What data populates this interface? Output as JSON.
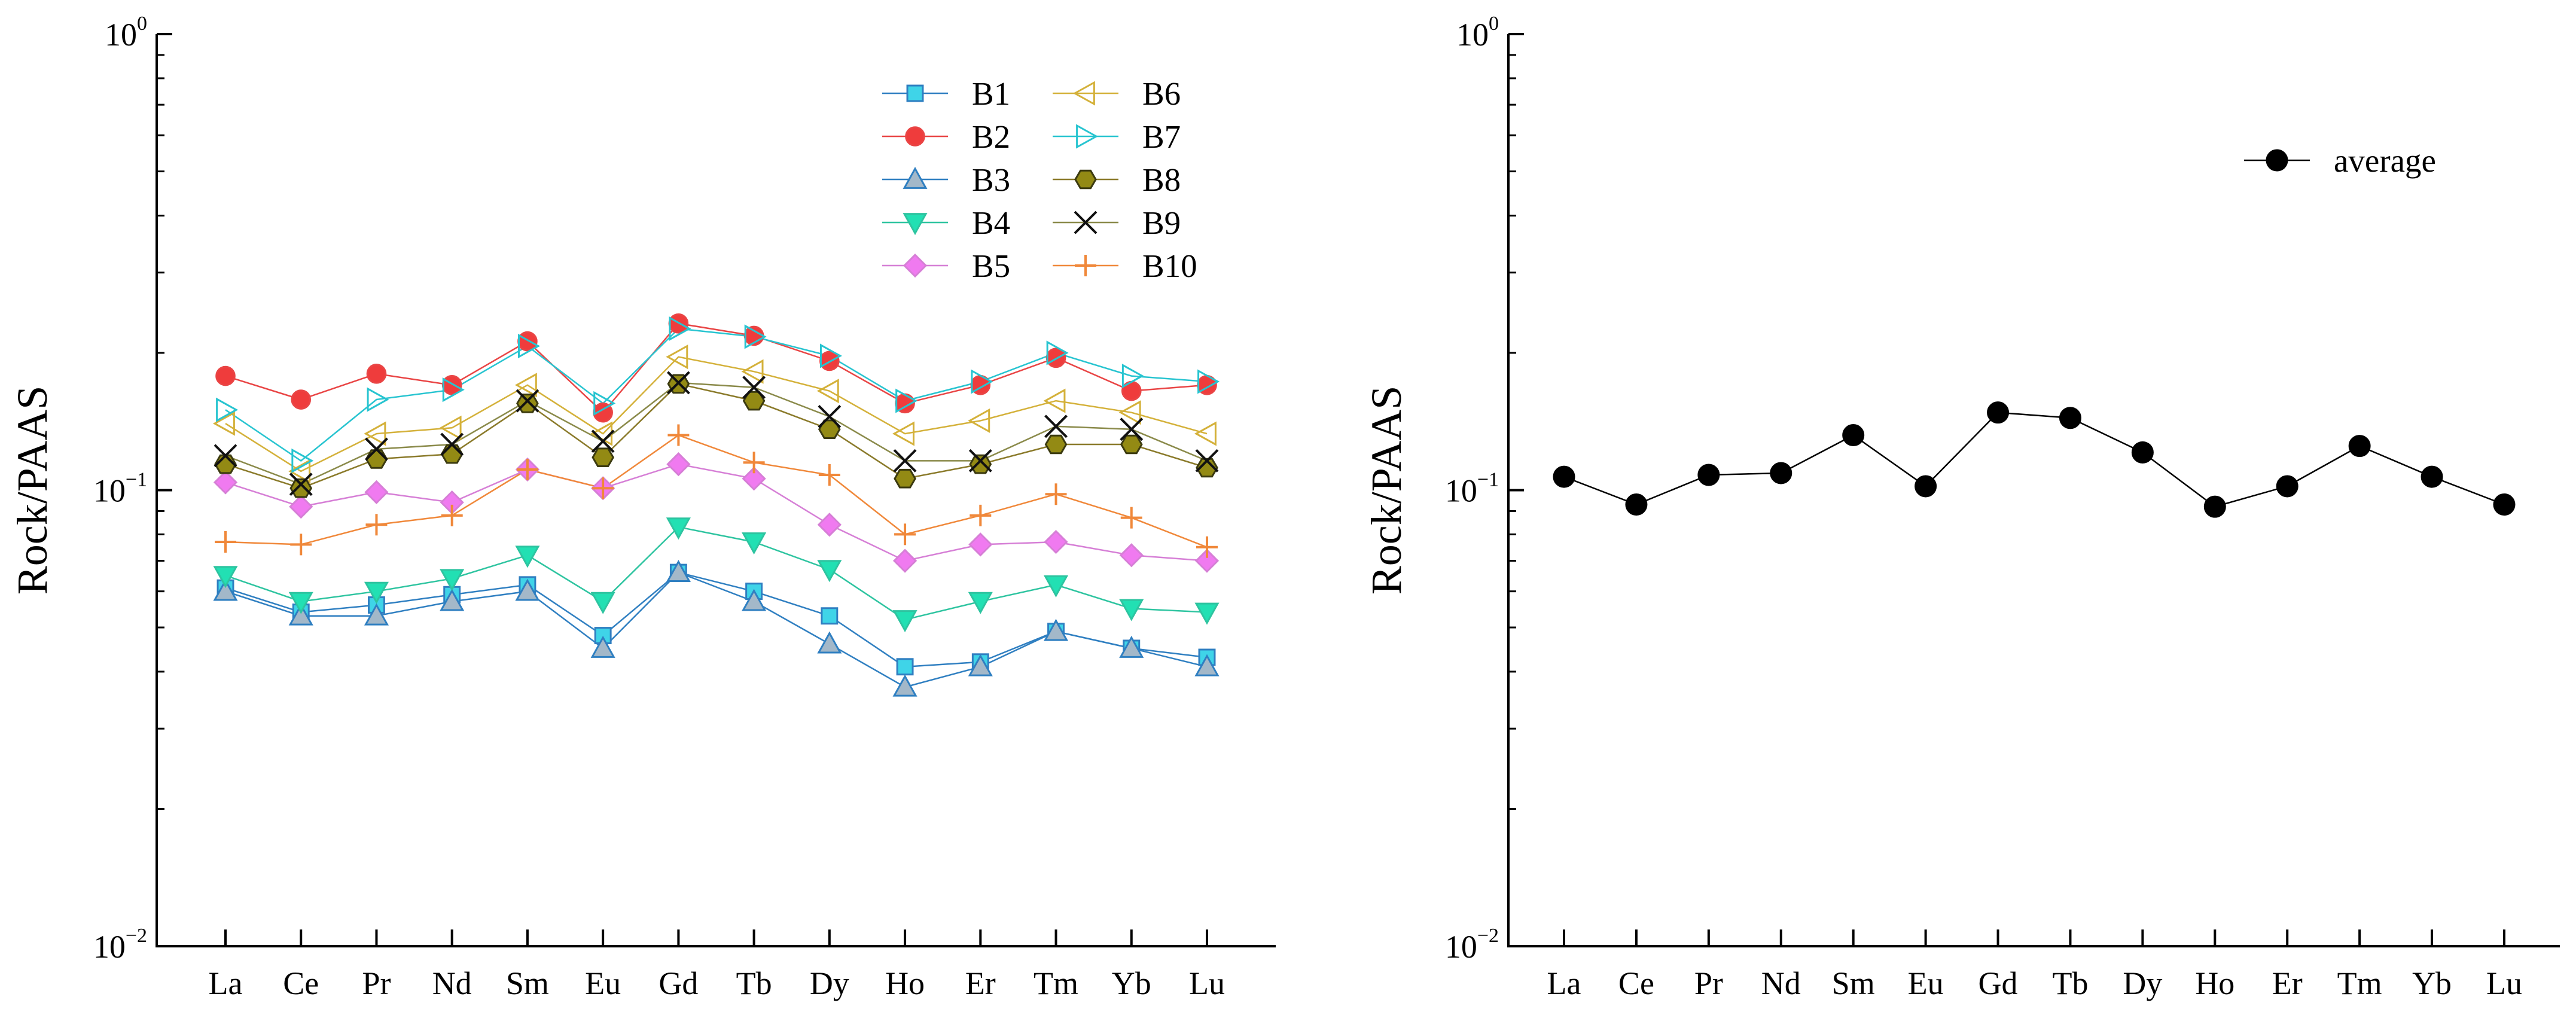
{
  "chart_data": [
    {
      "type": "line",
      "scale": "log",
      "ylabel": "Rock/PAAS",
      "ylim": [
        0.01,
        1
      ],
      "ytick_labels": [
        {
          "base": "10",
          "exp": "0",
          "value": 1
        },
        {
          "base": "10",
          "exp": "−1",
          "value": 0.1
        },
        {
          "base": "10",
          "exp": "−2",
          "value": 0.01
        }
      ],
      "categories": [
        "La",
        "Ce",
        "Pr",
        "Nd",
        "Sm",
        "Eu",
        "Gd",
        "Tb",
        "Dy",
        "Ho",
        "Er",
        "Tm",
        "Yb",
        "Lu"
      ],
      "legend_position": "top-right",
      "legend_columns": 2,
      "series": [
        {
          "name": "B1",
          "color": "#2f7fc1",
          "fill": "#3fd4e8",
          "marker": "square",
          "values": [
            0.061,
            0.054,
            0.056,
            0.059,
            0.062,
            0.048,
            0.066,
            0.06,
            0.053,
            0.041,
            0.042,
            0.049,
            0.045,
            0.043
          ]
        },
        {
          "name": "B2",
          "color": "#e94545",
          "fill": "#ef3c3c",
          "marker": "circle",
          "values": [
            0.178,
            0.158,
            0.18,
            0.17,
            0.212,
            0.148,
            0.232,
            0.218,
            0.192,
            0.155,
            0.17,
            0.195,
            0.165,
            0.17
          ]
        },
        {
          "name": "B3",
          "color": "#2f7fc1",
          "fill": "#a3b8c9",
          "marker": "triangle-up",
          "values": [
            0.06,
            0.053,
            0.053,
            0.057,
            0.06,
            0.045,
            0.066,
            0.057,
            0.046,
            0.037,
            0.041,
            0.049,
            0.045,
            0.041
          ]
        },
        {
          "name": "B4",
          "color": "#2ec4a0",
          "fill": "#22e0b3",
          "marker": "triangle-down",
          "values": [
            0.065,
            0.057,
            0.06,
            0.064,
            0.072,
            0.057,
            0.083,
            0.077,
            0.067,
            0.052,
            0.057,
            0.062,
            0.055,
            0.054
          ]
        },
        {
          "name": "B5",
          "color": "#d67fd6",
          "fill": "#f07af0",
          "marker": "diamond",
          "values": [
            0.104,
            0.092,
            0.099,
            0.094,
            0.111,
            0.101,
            0.114,
            0.106,
            0.084,
            0.07,
            0.076,
            0.077,
            0.072,
            0.07
          ]
        },
        {
          "name": "B6",
          "color": "#d4b13a",
          "fill": "none",
          "marker": "triangle-left",
          "values": [
            0.14,
            0.11,
            0.133,
            0.137,
            0.17,
            0.133,
            0.196,
            0.182,
            0.165,
            0.133,
            0.142,
            0.157,
            0.148,
            0.133
          ]
        },
        {
          "name": "B7",
          "color": "#27c4d0",
          "fill": "none",
          "marker": "triangle-right",
          "values": [
            0.15,
            0.116,
            0.158,
            0.166,
            0.207,
            0.155,
            0.226,
            0.217,
            0.197,
            0.157,
            0.173,
            0.2,
            0.178,
            0.173
          ]
        },
        {
          "name": "B8",
          "color": "#8a7a2a",
          "fill": "#938a14",
          "marker": "hexagon",
          "values": [
            0.114,
            0.101,
            0.117,
            0.12,
            0.155,
            0.118,
            0.171,
            0.157,
            0.136,
            0.106,
            0.114,
            0.126,
            0.126,
            0.112
          ]
        },
        {
          "name": "B9",
          "color": "#8a8a4a",
          "fill": "none",
          "marker": "x",
          "values": [
            0.119,
            0.103,
            0.123,
            0.126,
            0.157,
            0.128,
            0.172,
            0.168,
            0.145,
            0.116,
            0.116,
            0.138,
            0.136,
            0.116
          ]
        },
        {
          "name": "B10",
          "color": "#f0883a",
          "fill": "none",
          "marker": "plus",
          "values": [
            0.077,
            0.076,
            0.084,
            0.088,
            0.111,
            0.101,
            0.132,
            0.115,
            0.108,
            0.08,
            0.088,
            0.098,
            0.087,
            0.075
          ]
        }
      ]
    },
    {
      "type": "line",
      "scale": "log",
      "ylabel": "Rock/PAAS",
      "ylim": [
        0.01,
        1
      ],
      "ytick_labels": [
        {
          "base": "10",
          "exp": "0",
          "value": 1
        },
        {
          "base": "10",
          "exp": "−1",
          "value": 0.1
        },
        {
          "base": "10",
          "exp": "−2",
          "value": 0.01
        }
      ],
      "categories": [
        "La",
        "Ce",
        "Pr",
        "Nd",
        "Sm",
        "Eu",
        "Gd",
        "Tb",
        "Dy",
        "Ho",
        "Er",
        "Tm",
        "Yb",
        "Lu"
      ],
      "legend_position": "top-right",
      "legend_columns": 1,
      "series": [
        {
          "name": "average",
          "color": "#000000",
          "fill": "#000000",
          "marker": "circle",
          "values": [
            0.107,
            0.093,
            0.108,
            0.109,
            0.132,
            0.102,
            0.148,
            0.144,
            0.121,
            0.092,
            0.102,
            0.125,
            0.107,
            0.093
          ]
        }
      ]
    }
  ]
}
